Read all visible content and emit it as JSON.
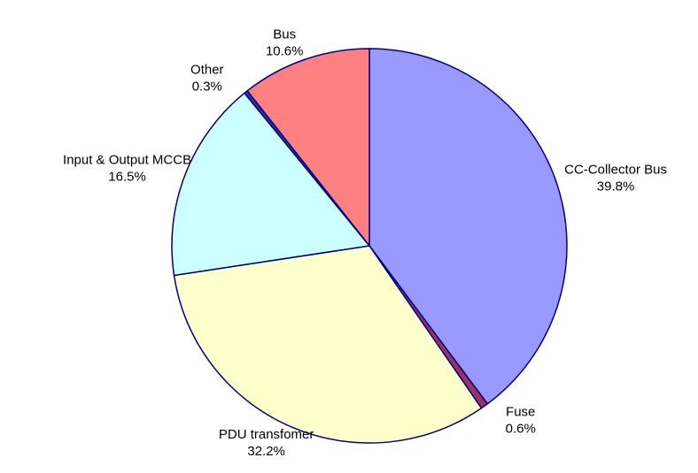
{
  "chart_data": {
    "type": "pie",
    "categories": [
      "CC-Collector Bus",
      "Fuse",
      "PDU transfomer",
      "Input & Output MCCB",
      "Other",
      "Bus"
    ],
    "values": [
      39.8,
      0.6,
      32.2,
      16.5,
      0.3,
      10.6
    ],
    "value_labels": [
      "39.8%",
      "0.6%",
      "32.2%",
      "16.5%",
      "0.3%",
      "10.6%"
    ],
    "colors": [
      "#9999ff",
      "#993366",
      "#ffffcc",
      "#ccffff",
      "#333399",
      "#ff8080"
    ]
  }
}
